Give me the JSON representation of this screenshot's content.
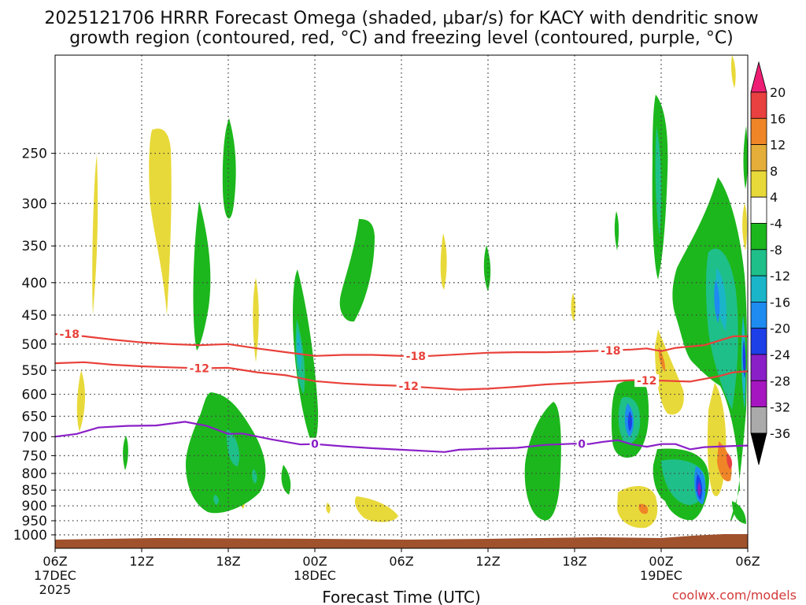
{
  "chart_data": {
    "type": "heatmap",
    "title_line1": "2025121706 HRRR Forecast Omega (shaded, μbar/s) for KACY with dendritic snow",
    "title_line2": "growth region (contoured, red, °C) and freezing level (contoured, purple, °C)",
    "xlabel": "Forecast Time (UTC)",
    "ylabel": "",
    "xlim_hours": [
      0,
      48
    ],
    "ylim_hpa": [
      1050,
      175
    ],
    "y_ticks": [
      250,
      300,
      350,
      400,
      450,
      500,
      550,
      600,
      650,
      700,
      750,
      800,
      850,
      900,
      950,
      1000
    ],
    "x_ticks": [
      {
        "h": 0,
        "l1": "06Z",
        "l2": "17DEC",
        "l3": "2025"
      },
      {
        "h": 6,
        "l1": "12Z",
        "l2": "",
        "l3": ""
      },
      {
        "h": 12,
        "l1": "18Z",
        "l2": "",
        "l3": ""
      },
      {
        "h": 18,
        "l1": "00Z",
        "l2": "18DEC",
        "l3": ""
      },
      {
        "h": 24,
        "l1": "06Z",
        "l2": "",
        "l3": ""
      },
      {
        "h": 30,
        "l1": "12Z",
        "l2": "",
        "l3": ""
      },
      {
        "h": 36,
        "l1": "18Z",
        "l2": "",
        "l3": ""
      },
      {
        "h": 42,
        "l1": "00Z",
        "l2": "19DEC",
        "l3": ""
      },
      {
        "h": 48,
        "l1": "06Z",
        "l2": "",
        "l3": ""
      }
    ],
    "colorbar": {
      "labels": [
        "20",
        "16",
        "12",
        "8",
        "4",
        "-4",
        "-8",
        "-12",
        "-16",
        "-20",
        "-24",
        "-28",
        "-32",
        "-36"
      ],
      "colors": [
        "#ee1e74",
        "#e94040",
        "#ef8527",
        "#e5ad39",
        "#e8d93a",
        "#ffffff",
        "#1cb71c",
        "#1fbf8a",
        "#1bb5c9",
        "#1e8bf0",
        "#1c3fe8",
        "#8a1fc7",
        "#a616c0",
        "#aaaaaa",
        "#000000"
      ]
    },
    "series": [
      {
        "name": "-18 °C isotherm",
        "label": "-18",
        "color": "#e8413a",
        "points": [
          [
            0,
            482
          ],
          [
            2,
            486
          ],
          [
            4,
            492
          ],
          [
            6,
            497
          ],
          [
            8,
            500
          ],
          [
            10,
            502
          ],
          [
            12,
            500
          ],
          [
            14,
            508
          ],
          [
            16,
            515
          ],
          [
            18,
            522
          ],
          [
            20,
            520
          ],
          [
            22,
            520
          ],
          [
            24,
            522
          ],
          [
            26,
            522
          ],
          [
            28,
            519
          ],
          [
            30,
            516
          ],
          [
            32,
            515
          ],
          [
            34,
            515
          ],
          [
            36,
            514
          ],
          [
            38,
            512
          ],
          [
            40,
            510
          ],
          [
            41,
            508
          ],
          [
            42,
            513
          ],
          [
            43,
            507
          ],
          [
            45,
            502
          ],
          [
            46,
            494
          ],
          [
            47,
            486
          ],
          [
            48,
            486
          ]
        ],
        "label_at": [
          [
            1,
            482
          ],
          [
            25,
            522
          ],
          [
            38.5,
            512
          ]
        ]
      },
      {
        "name": "-12 °C isotherm",
        "label": "-12",
        "color": "#e8413a",
        "points": [
          [
            0,
            536
          ],
          [
            2,
            534
          ],
          [
            4,
            539
          ],
          [
            6,
            542
          ],
          [
            8,
            544
          ],
          [
            10,
            546
          ],
          [
            12,
            545
          ],
          [
            14,
            554
          ],
          [
            16,
            560
          ],
          [
            18,
            572
          ],
          [
            20,
            577
          ],
          [
            22,
            580
          ],
          [
            24,
            582
          ],
          [
            26,
            586
          ],
          [
            28,
            590
          ],
          [
            30,
            588
          ],
          [
            32,
            584
          ],
          [
            34,
            579
          ],
          [
            36,
            576
          ],
          [
            38,
            573
          ],
          [
            40,
            570
          ],
          [
            42,
            571
          ],
          [
            44,
            573
          ],
          [
            46,
            562
          ],
          [
            47,
            554
          ],
          [
            48,
            552
          ]
        ],
        "label_at": [
          [
            10,
            546
          ],
          [
            24.5,
            582
          ],
          [
            41,
            571
          ]
        ]
      },
      {
        "name": "0 °C freezing level",
        "label": "0",
        "color": "#8a1fc7",
        "points": [
          [
            0,
            700
          ],
          [
            1.5,
            693
          ],
          [
            3,
            677
          ],
          [
            5,
            673
          ],
          [
            7,
            672
          ],
          [
            9,
            663
          ],
          [
            10.5,
            673
          ],
          [
            12,
            693
          ],
          [
            13,
            692
          ],
          [
            15,
            707
          ],
          [
            17,
            720
          ],
          [
            18,
            719
          ],
          [
            20,
            725
          ],
          [
            22,
            730
          ],
          [
            24,
            734
          ],
          [
            26,
            738
          ],
          [
            27,
            740
          ],
          [
            28,
            734
          ],
          [
            30,
            731
          ],
          [
            32,
            729
          ],
          [
            34,
            721
          ],
          [
            36,
            718
          ],
          [
            37,
            719
          ],
          [
            38,
            713
          ],
          [
            39,
            709
          ],
          [
            40,
            720
          ],
          [
            41,
            726
          ],
          [
            42,
            719
          ],
          [
            43,
            719
          ],
          [
            44,
            733
          ],
          [
            45,
            727
          ],
          [
            47,
            724
          ],
          [
            48,
            723
          ]
        ],
        "label_at": [
          [
            18,
            719
          ],
          [
            36.5,
            719
          ]
        ]
      }
    ],
    "credit": "coolwx.com/models"
  }
}
